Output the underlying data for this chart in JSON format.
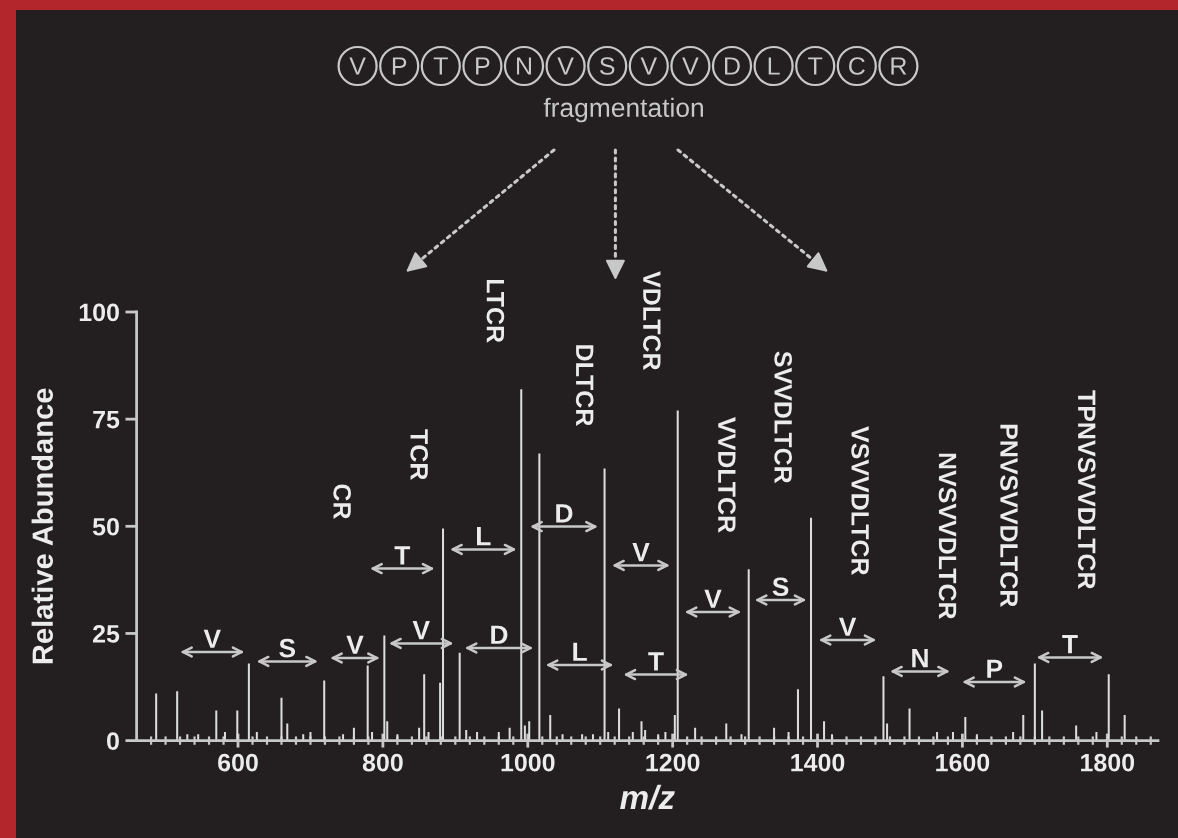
{
  "chart_data": {
    "type": "bar",
    "title": "VPTPNVSVVDLTCR",
    "subtitle": "fragmentation",
    "xlabel": "m/z",
    "ylabel": "Relative Abundance",
    "color": "#dcdcdc",
    "x": [
      487,
      516,
      530,
      545,
      570,
      582,
      599,
      615,
      626,
      660,
      668,
      690,
      700,
      719,
      745,
      760,
      779,
      785,
      802,
      806,
      820,
      850,
      857,
      863,
      879,
      883,
      906,
      915,
      930,
      960,
      975,
      991,
      996,
      1002,
      1016,
      1031,
      1048,
      1075,
      1090,
      1106,
      1111,
      1126,
      1145,
      1157,
      1162,
      1180,
      1190,
      1203,
      1207,
      1231,
      1274,
      1295,
      1305,
      1340,
      1360,
      1373,
      1391,
      1409,
      1420,
      1491,
      1496,
      1527,
      1565,
      1587,
      1604,
      1620,
      1670,
      1684,
      1700,
      1710,
      1757,
      1785,
      1802,
      1824
    ],
    "values": [
      11,
      11.5,
      1.5,
      1.5,
      7,
      2,
      7,
      18,
      2,
      10,
      4,
      1.5,
      2,
      14,
      1.5,
      3,
      17.5,
      2,
      24.5,
      4.5,
      1.5,
      3,
      15.5,
      2,
      13.5,
      49.5,
      20.5,
      2.5,
      2,
      2,
      3,
      82,
      3.5,
      4.5,
      67,
      6,
      1.5,
      1.5,
      1.5,
      63.5,
      2,
      7.5,
      2,
      4.5,
      2.5,
      1.5,
      2,
      6,
      77,
      3,
      4,
      1.5,
      40,
      3,
      2,
      12,
      52,
      4.5,
      1.5,
      15,
      4,
      7.5,
      2,
      2,
      5.5,
      1.5,
      2,
      6,
      18,
      7,
      3.5,
      2,
      15.5,
      6
    ],
    "xlim": [
      460,
      1870
    ],
    "ylim": [
      0,
      100
    ],
    "xticks": [
      {
        "value": 480,
        "label": null
      },
      {
        "value": 500,
        "label": null
      },
      {
        "value": 520,
        "label": null
      },
      {
        "value": 540,
        "label": null
      },
      {
        "value": 560,
        "label": null
      },
      {
        "value": 580,
        "label": null
      },
      600,
      {
        "value": 620,
        "label": null
      },
      {
        "value": 640,
        "label": null
      },
      {
        "value": 660,
        "label": null
      },
      {
        "value": 680,
        "label": null
      },
      {
        "value": 700,
        "label": null
      },
      {
        "value": 720,
        "label": null
      },
      {
        "value": 740,
        "label": null
      },
      {
        "value": 760,
        "label": null
      },
      {
        "value": 780,
        "label": null
      },
      800,
      {
        "value": 820,
        "label": null
      },
      {
        "value": 840,
        "label": null
      },
      {
        "value": 860,
        "label": null
      },
      {
        "value": 880,
        "label": null
      },
      {
        "value": 900,
        "label": null
      },
      {
        "value": 920,
        "label": null
      },
      {
        "value": 940,
        "label": null
      },
      {
        "value": 960,
        "label": null
      },
      {
        "value": 980,
        "label": null
      },
      1000,
      {
        "value": 1020,
        "label": null
      },
      {
        "value": 1040,
        "label": null
      },
      {
        "value": 1060,
        "label": null
      },
      {
        "value": 1080,
        "label": null
      },
      {
        "value": 1100,
        "label": null
      },
      {
        "value": 1120,
        "label": null
      },
      {
        "value": 1140,
        "label": null
      },
      {
        "value": 1160,
        "label": null
      },
      {
        "value": 1180,
        "label": null
      },
      1200,
      {
        "value": 1220,
        "label": null
      },
      {
        "value": 1240,
        "label": null
      },
      {
        "value": 1260,
        "label": null
      },
      {
        "value": 1280,
        "label": null
      },
      {
        "value": 1300,
        "label": null
      },
      {
        "value": 1320,
        "label": null
      },
      {
        "value": 1340,
        "label": null
      },
      {
        "value": 1360,
        "label": null
      },
      {
        "value": 1380,
        "label": null
      },
      1400,
      {
        "value": 1420,
        "label": null
      },
      {
        "value": 1440,
        "label": null
      },
      {
        "value": 1460,
        "label": null
      },
      {
        "value": 1480,
        "label": null
      },
      {
        "value": 1500,
        "label": null
      },
      {
        "value": 1520,
        "label": null
      },
      {
        "value": 1540,
        "label": null
      },
      {
        "value": 1560,
        "label": null
      },
      {
        "value": 1580,
        "label": null
      },
      1600,
      {
        "value": 1620,
        "label": null
      },
      {
        "value": 1640,
        "label": null
      },
      {
        "value": 1660,
        "label": null
      },
      {
        "value": 1680,
        "label": null
      },
      {
        "value": 1700,
        "label": null
      },
      {
        "value": 1720,
        "label": null
      },
      {
        "value": 1740,
        "label": null
      },
      {
        "value": 1760,
        "label": null
      },
      {
        "value": 1780,
        "label": null
      },
      1800,
      {
        "value": 1820,
        "label": null
      },
      {
        "value": 1840,
        "label": null
      },
      {
        "value": 1860,
        "label": null
      }
    ],
    "yticks": [
      0,
      25,
      50,
      75,
      100
    ],
    "annotations": [
      "CR",
      {
        "text": "TCR",
        "x": 883,
        "y": 49.5
      },
      {
        "text": "LTCR",
        "x": 991,
        "y": 82
      },
      {
        "text": "DLTCR",
        "x": 1106,
        "y": 63.5
      },
      {
        "text": "VDLTCR",
        "x": 1207,
        "y": 77
      },
      {
        "text": "VVDLTCR",
        "x": 1305,
        "y": 40
      },
      {
        "text": "SVVDLTCR",
        "x": 1391,
        "y": 52
      },
      "VSVVDLTCR",
      "NVSVVDLTCR",
      {
        "text": "PNVSVVDLTCR",
        "x": 1700,
        "y": 18
      },
      "TPNVSVVDLTCR",
      "V",
      "S",
      "V",
      "T",
      {
        "text": "V",
        "x": 802,
        "y": 24.5
      },
      "L",
      "D",
      "D",
      "L",
      "V",
      "T",
      "V",
      "S",
      "V",
      "N",
      "P",
      "T"
    ]
  }
}
